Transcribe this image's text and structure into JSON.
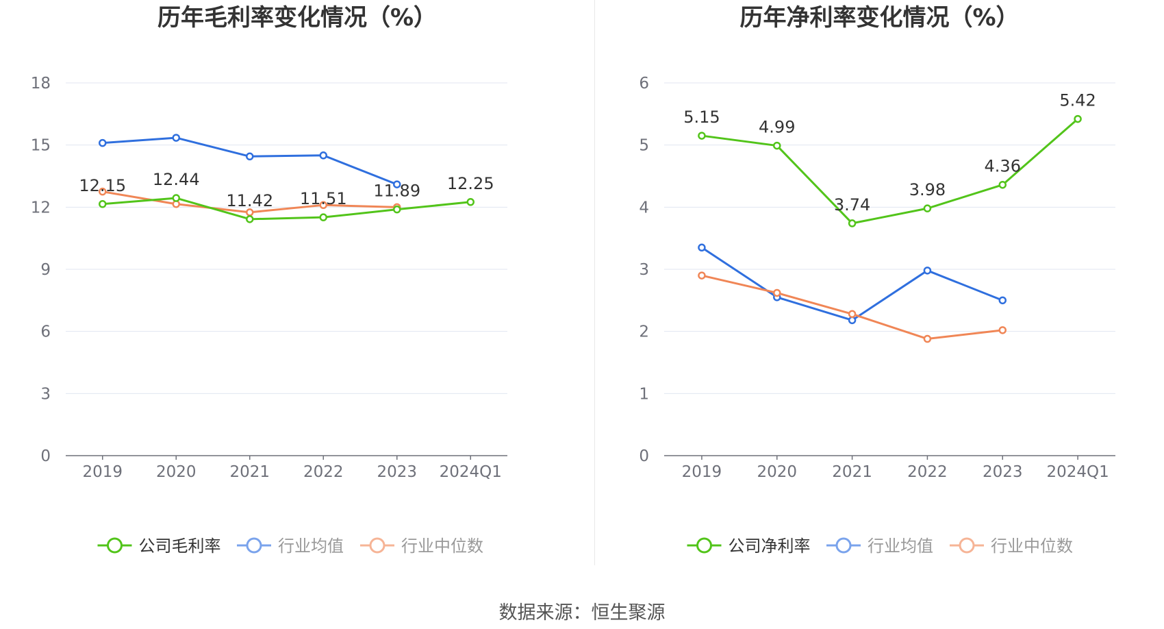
{
  "source_text": "数据来源：恒生聚源",
  "chart_data": [
    {
      "type": "line",
      "title": "历年毛利率变化情况（%）",
      "categories": [
        "2019",
        "2020",
        "2021",
        "2022",
        "2023",
        "2024Q1"
      ],
      "y_ticks": [
        "0",
        "3",
        "6",
        "9",
        "12",
        "15",
        "18"
      ],
      "ylim": [
        0,
        18
      ],
      "grid": true,
      "legend_position": "bottom",
      "series": [
        {
          "name": "公司毛利率",
          "color": "#52c41a",
          "labeled": true,
          "values": [
            12.15,
            12.44,
            11.42,
            11.51,
            11.89,
            12.25
          ],
          "labels": [
            "12.15",
            "12.44",
            "11.42",
            "11.51",
            "11.89",
            "12.25"
          ]
        },
        {
          "name": "行业均值",
          "color": "#2f6fde",
          "labeled": false,
          "values": [
            15.1,
            15.35,
            14.45,
            14.5,
            13.1,
            null
          ]
        },
        {
          "name": "行业中位数",
          "color": "#f08656",
          "labeled": false,
          "values": [
            12.75,
            12.15,
            11.75,
            12.1,
            12.0,
            null
          ]
        }
      ]
    },
    {
      "type": "line",
      "title": "历年净利率变化情况（%）",
      "categories": [
        "2019",
        "2020",
        "2021",
        "2022",
        "2023",
        "2024Q1"
      ],
      "y_ticks": [
        "0",
        "1",
        "2",
        "3",
        "4",
        "5",
        "6"
      ],
      "ylim": [
        0,
        6
      ],
      "grid": true,
      "legend_position": "bottom",
      "series": [
        {
          "name": "公司净利率",
          "color": "#52c41a",
          "labeled": true,
          "values": [
            5.15,
            4.99,
            3.74,
            3.98,
            4.36,
            5.42
          ],
          "labels": [
            "5.15",
            "4.99",
            "3.74",
            "3.98",
            "4.36",
            "5.42"
          ]
        },
        {
          "name": "行业均值",
          "color": "#2f6fde",
          "labeled": false,
          "values": [
            3.35,
            2.55,
            2.18,
            2.98,
            2.5,
            null
          ]
        },
        {
          "name": "行业中位数",
          "color": "#f08656",
          "labeled": false,
          "values": [
            2.9,
            2.62,
            2.28,
            1.88,
            2.02,
            null
          ]
        }
      ]
    }
  ]
}
